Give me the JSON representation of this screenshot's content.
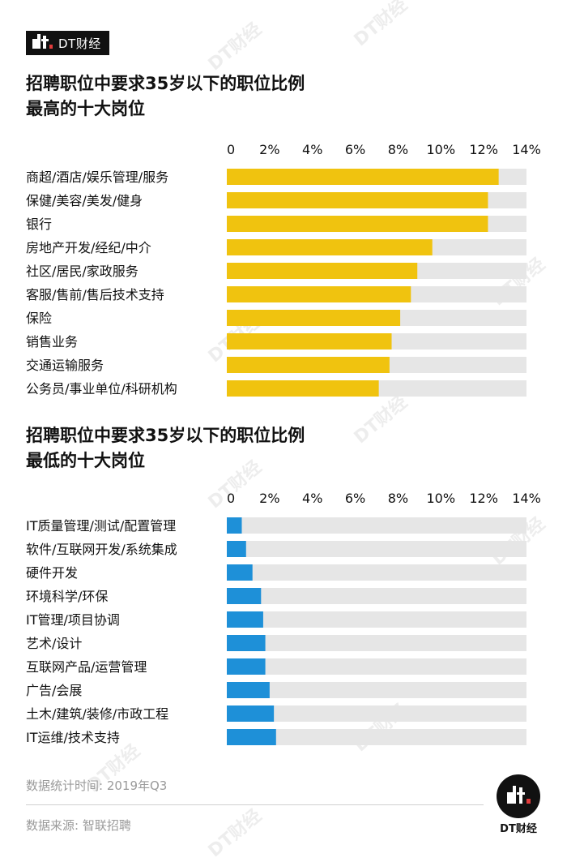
{
  "brand": {
    "name": "DT财经"
  },
  "colors": {
    "top_bar": "#f0c30f",
    "bottom_bar": "#1e90d8",
    "track": "#e6e6e6"
  },
  "footer": {
    "stat_time": "数据统计时间: 2019年Q3",
    "source": "数据来源: 智联招聘"
  },
  "chart_data": [
    {
      "type": "bar",
      "orientation": "horizontal",
      "title": [
        "招聘职位中要求35岁以下的职位比例",
        "最高的十大岗位"
      ],
      "ticks": [
        "0",
        "2%",
        "4%",
        "6%",
        "8%",
        "10%",
        "12%",
        "14%"
      ],
      "xlim": [
        0,
        14
      ],
      "grid": false,
      "categories": [
        "商超/酒店/娱乐管理/服务",
        "保健/美容/美发/健身",
        "银行",
        "房地产开发/经纪/中介",
        "社区/居民/家政服务",
        "客服/售前/售后技术支持",
        "保险",
        "销售业务",
        "交通运输服务",
        "公务员/事业单位/科研机构"
      ],
      "values": [
        12.7,
        12.2,
        12.2,
        9.6,
        8.9,
        8.6,
        8.1,
        7.7,
        7.6,
        7.1
      ]
    },
    {
      "type": "bar",
      "orientation": "horizontal",
      "title": [
        "招聘职位中要求35岁以下的职位比例",
        "最低的十大岗位"
      ],
      "ticks": [
        "0",
        "2%",
        "4%",
        "6%",
        "8%",
        "10%",
        "12%",
        "14%"
      ],
      "xlim": [
        0,
        14
      ],
      "grid": false,
      "categories": [
        "IT质量管理/测试/配置管理",
        "软件/互联网开发/系统集成",
        "硬件开发",
        "环境科学/环保",
        "IT管理/项目协调",
        "艺术/设计",
        "互联网产品/运营管理",
        "广告/会展",
        "土木/建筑/装修/市政工程",
        "IT运维/技术支持"
      ],
      "values": [
        0.7,
        0.9,
        1.2,
        1.6,
        1.7,
        1.8,
        1.8,
        2.0,
        2.2,
        2.3
      ]
    }
  ]
}
